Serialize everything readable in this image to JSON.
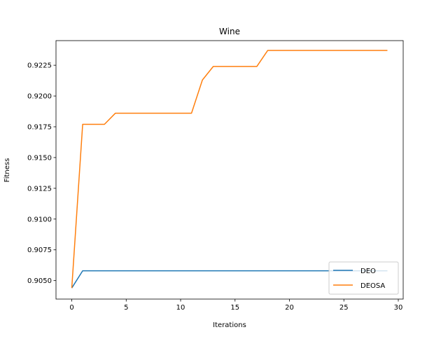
{
  "chart_data": {
    "type": "line",
    "title": "Wine",
    "xlabel": "Iterations",
    "ylabel": "Fitness",
    "xlim": [
      -1.45,
      30.45
    ],
    "ylim": [
      0.9035,
      0.9245
    ],
    "xticks": [
      0,
      5,
      10,
      15,
      20,
      25,
      30
    ],
    "yticks": [
      0.905,
      0.9075,
      0.91,
      0.9125,
      0.915,
      0.9175,
      0.92,
      0.9225
    ],
    "ytick_labels": [
      "0.9050",
      "0.9075",
      "0.9100",
      "0.9125",
      "0.9150",
      "0.9175",
      "0.9200",
      "0.9225"
    ],
    "grid": false,
    "legend_position": "lower right",
    "x": [
      0,
      1,
      2,
      3,
      4,
      5,
      6,
      7,
      8,
      9,
      10,
      11,
      12,
      13,
      14,
      15,
      16,
      17,
      18,
      19,
      20,
      21,
      22,
      23,
      24,
      25,
      26,
      27,
      28,
      29
    ],
    "series": [
      {
        "name": "DEO",
        "color": "#1f77b4",
        "values": [
          0.9044,
          0.9058,
          0.9058,
          0.9058,
          0.9058,
          0.9058,
          0.9058,
          0.9058,
          0.9058,
          0.9058,
          0.9058,
          0.9058,
          0.9058,
          0.9058,
          0.9058,
          0.9058,
          0.9058,
          0.9058,
          0.9058,
          0.9058,
          0.9058,
          0.9058,
          0.9058,
          0.9058,
          0.9058,
          0.9058,
          0.9058,
          0.9058,
          0.9058,
          0.9058
        ]
      },
      {
        "name": "DEOSA",
        "color": "#ff7f0e",
        "values": [
          0.9044,
          0.9177,
          0.9177,
          0.9177,
          0.9186,
          0.9186,
          0.9186,
          0.9186,
          0.9186,
          0.9186,
          0.9186,
          0.9186,
          0.9213,
          0.9224,
          0.9224,
          0.9224,
          0.9224,
          0.9224,
          0.9237,
          0.9237,
          0.9237,
          0.9237,
          0.9237,
          0.9237,
          0.9237,
          0.9237,
          0.9237,
          0.9237,
          0.9237,
          0.9237
        ]
      }
    ]
  }
}
